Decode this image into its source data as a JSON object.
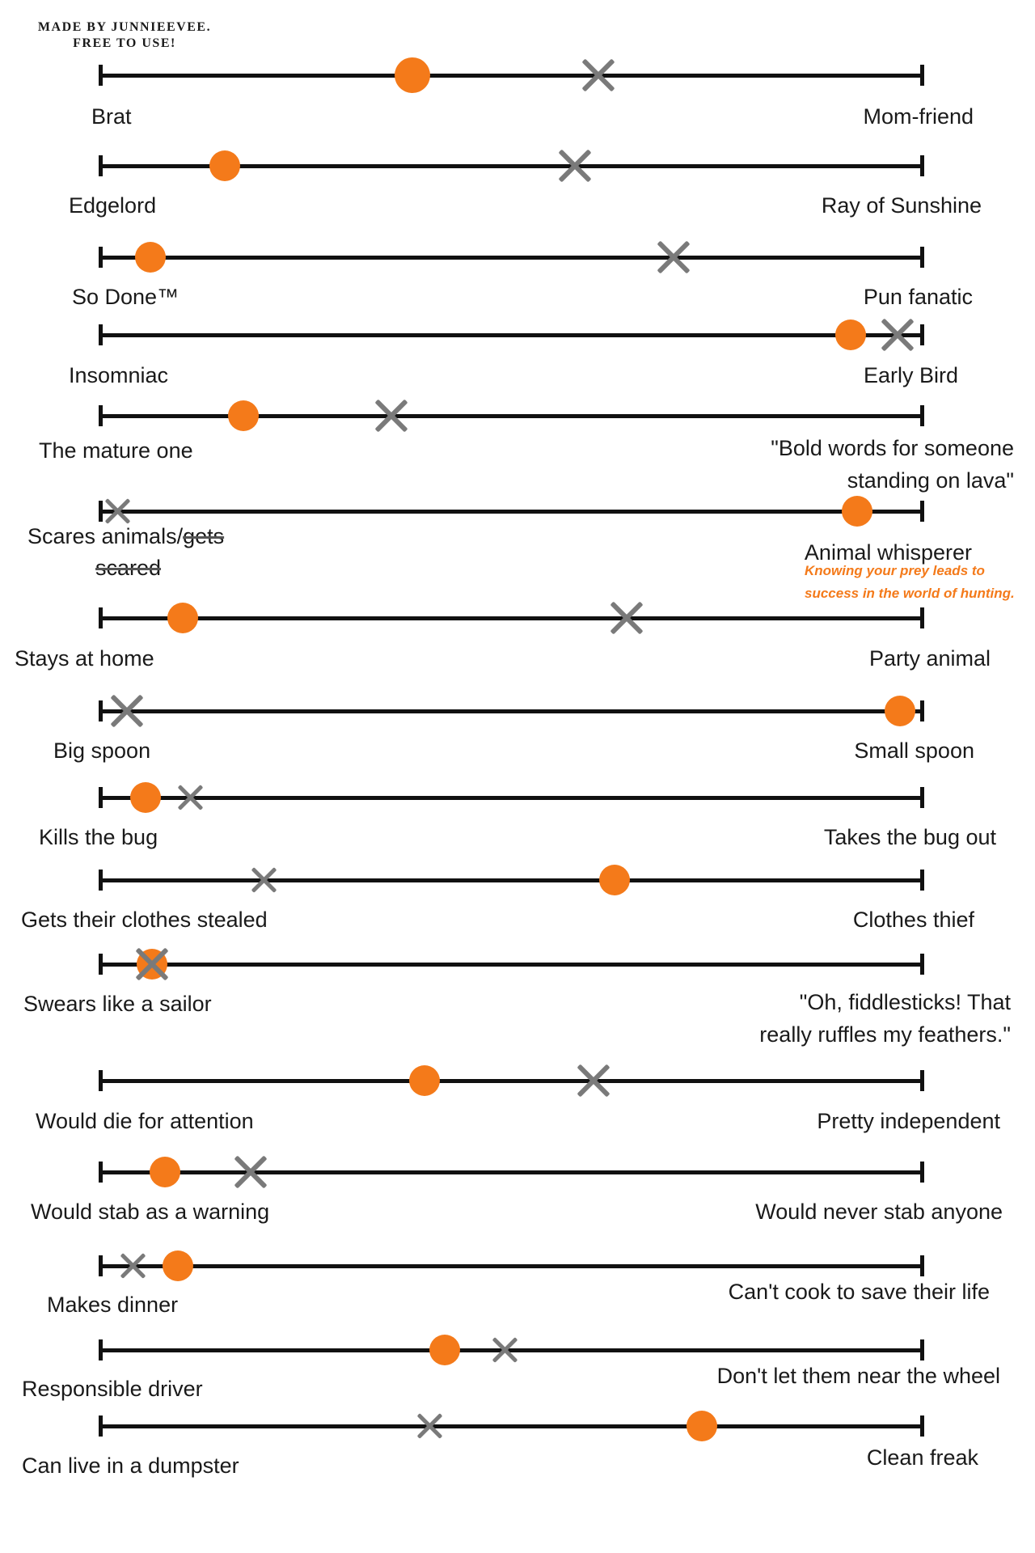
{
  "credit": {
    "line1": "MADE BY JUNNIEEVEE.",
    "line2": "FREE TO USE!"
  },
  "colors": {
    "orange_marker": "#f47a1a",
    "gray_marker": "#7a7a7a",
    "axis": "#111111"
  },
  "markers": {
    "orange": "orange-dot-icon",
    "gray": "gray-x-icon"
  },
  "scales": [
    {
      "left": "Brat",
      "right": "Mom-friend",
      "orange": 0.38,
      "gray": 0.606
    },
    {
      "left": "Edgelord",
      "right": "Ray of Sunshine",
      "orange": 0.151,
      "gray": 0.577
    },
    {
      "left": "So Done™",
      "right": "Pun fanatic",
      "orange": 0.061,
      "gray": 0.697
    },
    {
      "left": "Insomniac",
      "right": "Early Bird",
      "orange": 0.912,
      "gray": 0.97
    },
    {
      "left": "The mature one",
      "right_line1": "\"Bold words for someone",
      "right_line2": "standing on lava\"",
      "orange": 0.174,
      "gray": 0.354
    },
    {
      "left_plain": "Scares animals/",
      "left_struck1": "gets",
      "left_struck2": "scared",
      "right": "Animal whisperer",
      "orange": 0.92,
      "gray": 0.022,
      "note_line1": "Knowing your prey leads to",
      "note_line2": "success in the world of hunting."
    },
    {
      "left": "Stays at home",
      "right": "Party animal",
      "orange": 0.1,
      "gray": 0.64
    },
    {
      "left": "Big spoon",
      "right": "Small spoon",
      "orange": 0.972,
      "gray": 0.032
    },
    {
      "left": "Kills the bug",
      "right": "Takes the bug out",
      "orange": 0.055,
      "gray": 0.11
    },
    {
      "left": "Gets their clothes stealed",
      "right": "Clothes thief",
      "orange": 0.625,
      "gray": 0.2
    },
    {
      "left": "Swears like a sailor",
      "right_line1": "\"Oh, fiddlesticks! That",
      "right_line2": "really ruffles my feathers.\"",
      "orange": 0.063,
      "gray": 0.063
    },
    {
      "left": "Would die for attention",
      "right": "Pretty independent",
      "orange": 0.394,
      "gray": 0.6
    },
    {
      "left": "Would stab as a warning",
      "right": "Would never stab anyone",
      "orange": 0.079,
      "gray": 0.183
    },
    {
      "left": "Makes dinner",
      "right": "Can't cook to save their life",
      "orange": 0.094,
      "gray": 0.04
    },
    {
      "left": "Responsible driver",
      "right": "Don't let them near the wheel",
      "orange": 0.419,
      "gray": 0.493
    },
    {
      "left": "Can live in a dumpster",
      "right": "Clean freak",
      "orange": 0.732,
      "gray": 0.401
    }
  ]
}
